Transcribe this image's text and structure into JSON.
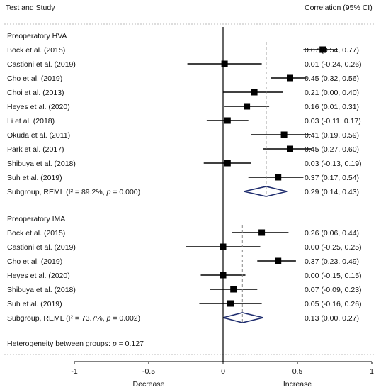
{
  "header": {
    "left": "Test and Study",
    "right": "Correlation  (95% CI)"
  },
  "chart_data": {
    "type": "forest",
    "xlim": [
      -1.5,
      1.5
    ],
    "xticks": [
      -1,
      -0.5,
      0,
      0.5,
      1
    ],
    "xtick_labels": [
      "-1",
      "-0.5",
      "0",
      "0.5",
      "1"
    ],
    "direction_labels": [
      "Decrease",
      "Increase"
    ],
    "null_line": 0,
    "groups": [
      {
        "name": "Preoperatory HVA",
        "studies": [
          {
            "label": "Bock et al. (2015)",
            "est": 0.67,
            "lo": 0.54,
            "hi": 0.77,
            "ci_text": "0.67 (0.54, 0.77)"
          },
          {
            "label": "Castioni et al. (2019)",
            "est": 0.01,
            "lo": -0.24,
            "hi": 0.26,
            "ci_text": "0.01 (-0.24, 0.26)"
          },
          {
            "label": "Cho et al. (2019)",
            "est": 0.45,
            "lo": 0.32,
            "hi": 0.56,
            "ci_text": "0.45 (0.32, 0.56)"
          },
          {
            "label": "Choi et al. (2013)",
            "est": 0.21,
            "lo": 0.0,
            "hi": 0.4,
            "ci_text": "0.21 (0.00, 0.40)"
          },
          {
            "label": "Heyes et al. (2020)",
            "est": 0.16,
            "lo": 0.01,
            "hi": 0.31,
            "ci_text": "0.16 (0.01, 0.31)"
          },
          {
            "label": "Li et al. (2018)",
            "est": 0.03,
            "lo": -0.11,
            "hi": 0.17,
            "ci_text": "0.03 (-0.11, 0.17)"
          },
          {
            "label": "Okuda et al. (2011)",
            "est": 0.41,
            "lo": 0.19,
            "hi": 0.59,
            "ci_text": "0.41 (0.19, 0.59)"
          },
          {
            "label": "Park et al. (2017)",
            "est": 0.45,
            "lo": 0.27,
            "hi": 0.6,
            "ci_text": "0.45 (0.27, 0.60)"
          },
          {
            "label": "Shibuya et al. (2018)",
            "est": 0.03,
            "lo": -0.13,
            "hi": 0.19,
            "ci_text": "0.03 (-0.13, 0.19)"
          },
          {
            "label": "Suh et al. (2019)",
            "est": 0.37,
            "lo": 0.17,
            "hi": 0.54,
            "ci_text": "0.37 (0.17, 0.54)"
          }
        ],
        "subgroup": {
          "label_prefix": "Subgroup, REML (I² = 89.2%, ",
          "p_symbol": "p",
          "label_suffix": " = 0.000)",
          "est": 0.29,
          "lo": 0.14,
          "hi": 0.43,
          "ci_text": "0.29 (0.14, 0.43)"
        }
      },
      {
        "name": "Preoperatory IMA",
        "studies": [
          {
            "label": "Bock et al. (2015)",
            "est": 0.26,
            "lo": 0.06,
            "hi": 0.44,
            "ci_text": "0.26 (0.06, 0.44)"
          },
          {
            "label": "Castioni et al. (2019)",
            "est": 0.0,
            "lo": -0.25,
            "hi": 0.25,
            "ci_text": "0.00 (-0.25, 0.25)"
          },
          {
            "label": "Cho et al. (2019)",
            "est": 0.37,
            "lo": 0.23,
            "hi": 0.49,
            "ci_text": "0.37 (0.23, 0.49)"
          },
          {
            "label": "Heyes et al. (2020)",
            "est": 0.0,
            "lo": -0.15,
            "hi": 0.15,
            "ci_text": "0.00 (-0.15, 0.15)"
          },
          {
            "label": "Shibuya et al. (2018)",
            "est": 0.07,
            "lo": -0.09,
            "hi": 0.23,
            "ci_text": "0.07 (-0.09, 0.23)"
          },
          {
            "label": "Suh et al. (2019)",
            "est": 0.05,
            "lo": -0.16,
            "hi": 0.26,
            "ci_text": "0.05 (-0.16, 0.26)"
          }
        ],
        "subgroup": {
          "label_prefix": "Subgroup, REML (I² = 73.7%, ",
          "p_symbol": "p",
          "label_suffix": " = 0.002)",
          "est": 0.13,
          "lo": 0.0,
          "hi": 0.27,
          "ci_text": "0.13 (0.00, 0.27)"
        }
      }
    ],
    "heterogeneity": {
      "prefix": "Heterogeneity between groups: ",
      "p_symbol": "p",
      "suffix": " = 0.127"
    },
    "colors": {
      "marker": "#000000",
      "diamond": "#1f2d6e",
      "reference_line": "#888888",
      "axis": "#000000",
      "divider": "#bbbbbb"
    }
  }
}
